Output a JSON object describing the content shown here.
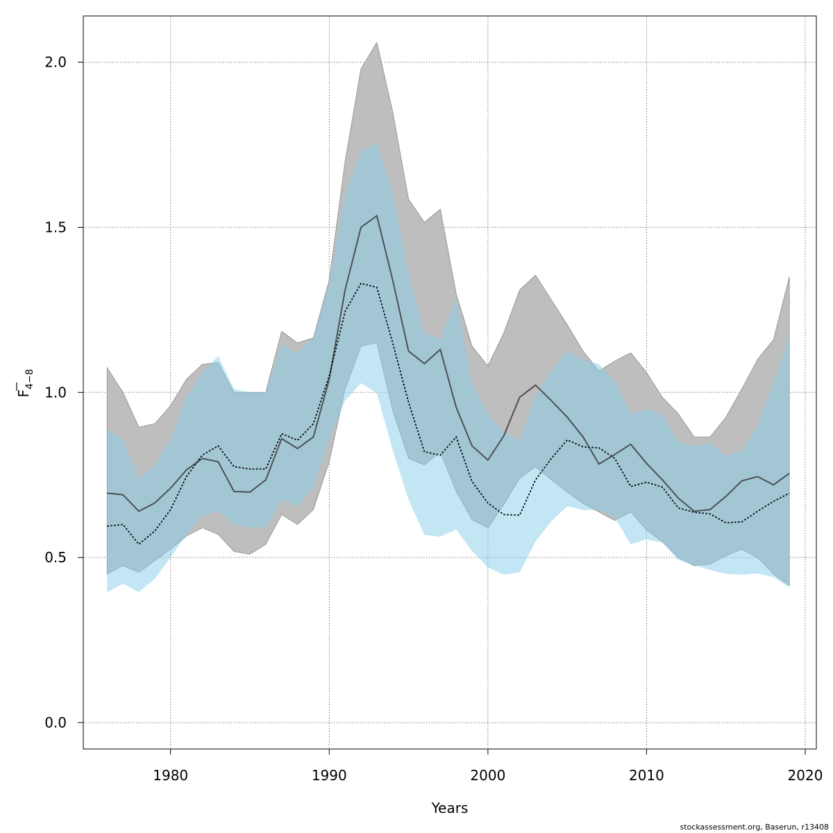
{
  "chart_data": {
    "type": "line",
    "title": "",
    "xlabel": "Years",
    "ylabel_main": "F",
    "ylabel_sub": "4−8",
    "xlim": [
      1974.5,
      2020.7
    ],
    "ylim": [
      -0.08,
      2.14
    ],
    "grid": true,
    "x_ticks": [
      1980,
      1990,
      2000,
      2010,
      2020
    ],
    "y_ticks": [
      0.0,
      0.5,
      1.0,
      1.5,
      2.0
    ],
    "x_tick_labels": [
      "1980",
      "1990",
      "2000",
      "2010",
      "2020"
    ],
    "y_tick_labels": [
      "0.0",
      "0.5",
      "1.0",
      "1.5",
      "2.0"
    ],
    "x": [
      1976,
      1977,
      1978,
      1979,
      1980,
      1981,
      1982,
      1983,
      1984,
      1985,
      1986,
      1987,
      1988,
      1989,
      1990,
      1991,
      1992,
      1993,
      1994,
      1995,
      1996,
      1997,
      1998,
      1999,
      2000,
      2001,
      2002,
      2003,
      2004,
      2005,
      2006,
      2007,
      2008,
      2009,
      2010,
      2011,
      2012,
      2013,
      2014,
      2015,
      2016,
      2017,
      2018,
      2019
    ],
    "series": [
      {
        "style": "solid",
        "color": "#333333",
        "band_color": "#bebebe",
        "values": [
          0.695,
          0.69,
          0.64,
          0.665,
          0.71,
          0.765,
          0.8,
          0.79,
          0.7,
          0.698,
          0.735,
          0.86,
          0.83,
          0.865,
          1.04,
          1.31,
          1.5,
          1.535,
          1.34,
          1.125,
          1.087,
          1.13,
          0.955,
          0.838,
          0.795,
          0.868,
          0.985,
          1.022,
          0.975,
          0.925,
          0.865,
          0.783,
          0.812,
          0.843,
          0.785,
          0.735,
          0.68,
          0.64,
          0.645,
          0.685,
          0.732,
          0.745,
          0.72,
          0.755
        ],
        "upper": [
          1.075,
          1.0,
          0.895,
          0.905,
          0.96,
          1.04,
          1.085,
          1.09,
          1.0,
          1.0,
          1.0,
          1.185,
          1.15,
          1.165,
          1.34,
          1.7,
          1.98,
          2.06,
          1.85,
          1.585,
          1.515,
          1.555,
          1.3,
          1.14,
          1.08,
          1.18,
          1.31,
          1.355,
          1.28,
          1.205,
          1.125,
          1.065,
          1.095,
          1.12,
          1.06,
          0.985,
          0.935,
          0.865,
          0.865,
          0.925,
          1.01,
          1.1,
          1.16,
          1.35
        ],
        "lower": [
          0.45,
          0.475,
          0.455,
          0.49,
          0.525,
          0.565,
          0.59,
          0.57,
          0.518,
          0.51,
          0.54,
          0.63,
          0.6,
          0.645,
          0.79,
          1.01,
          1.14,
          1.15,
          0.945,
          0.8,
          0.78,
          0.82,
          0.7,
          0.615,
          0.59,
          0.66,
          0.74,
          0.775,
          0.735,
          0.698,
          0.664,
          0.638,
          0.612,
          0.638,
          0.583,
          0.548,
          0.5,
          0.475,
          0.48,
          0.505,
          0.525,
          0.5,
          0.45,
          0.415
        ]
      },
      {
        "style": "dotted",
        "color": "#000000",
        "band_color": "#87ceeb",
        "values": [
          0.595,
          0.6,
          0.54,
          0.58,
          0.645,
          0.745,
          0.81,
          0.838,
          0.775,
          0.768,
          0.768,
          0.875,
          0.855,
          0.905,
          1.05,
          1.245,
          1.33,
          1.318,
          1.15,
          0.97,
          0.82,
          0.81,
          0.865,
          0.73,
          0.665,
          0.63,
          0.628,
          0.735,
          0.8,
          0.856,
          0.835,
          0.832,
          0.8,
          0.715,
          0.728,
          0.713,
          0.65,
          0.637,
          0.632,
          0.605,
          0.608,
          0.64,
          0.67,
          0.695
        ],
        "upper": [
          0.89,
          0.855,
          0.74,
          0.775,
          0.86,
          0.985,
          1.06,
          1.11,
          1.01,
          1.0,
          1.0,
          1.145,
          1.12,
          1.165,
          1.33,
          1.6,
          1.73,
          1.755,
          1.6,
          1.36,
          1.18,
          1.16,
          1.285,
          1.03,
          0.935,
          0.88,
          0.855,
          0.99,
          1.065,
          1.125,
          1.1,
          1.085,
          1.035,
          0.935,
          0.95,
          0.932,
          0.85,
          0.838,
          0.848,
          0.808,
          0.822,
          0.9,
          1.03,
          1.17
        ],
        "lower": [
          0.395,
          0.42,
          0.395,
          0.435,
          0.5,
          0.57,
          0.625,
          0.64,
          0.6,
          0.59,
          0.59,
          0.675,
          0.655,
          0.71,
          0.86,
          0.975,
          1.028,
          0.998,
          0.825,
          0.675,
          0.568,
          0.563,
          0.585,
          0.52,
          0.47,
          0.448,
          0.455,
          0.548,
          0.61,
          0.655,
          0.644,
          0.643,
          0.62,
          0.54,
          0.555,
          0.545,
          0.492,
          0.477,
          0.462,
          0.45,
          0.448,
          0.452,
          0.44,
          0.41
        ]
      }
    ]
  },
  "credit": "stockassessment.org, Baserun, r13408"
}
